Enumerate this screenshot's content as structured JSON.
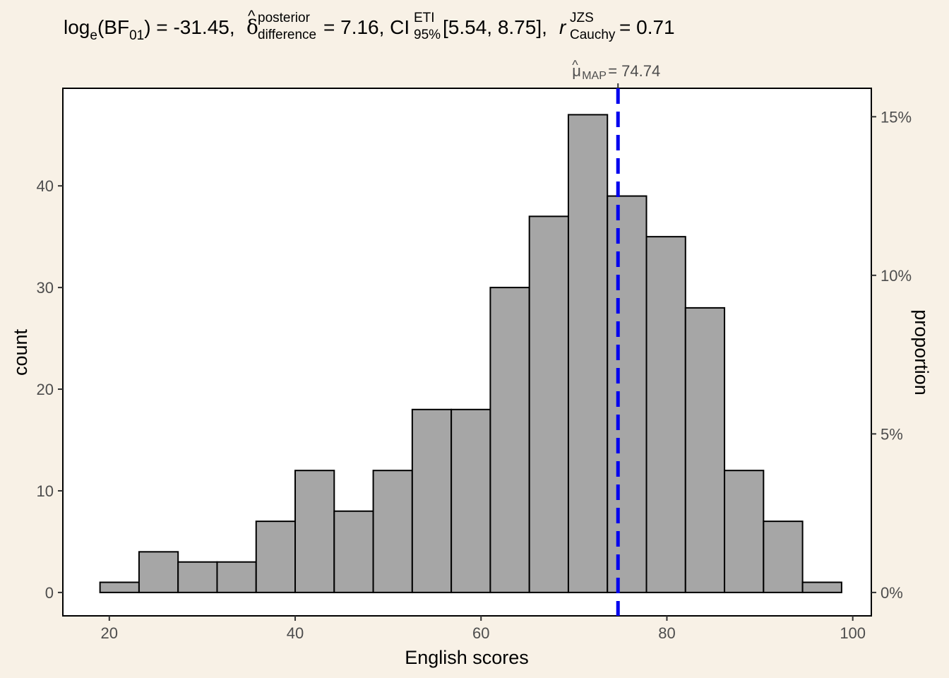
{
  "chart_data": {
    "type": "bar",
    "subtitle": {
      "log_prefix": "log",
      "log_sub": "e",
      "bf_open": "(BF",
      "bf_sub": "01",
      "bf_close": ")",
      "bf_eq": " = -31.45, ",
      "delta_symbol": "δ",
      "delta_hat": "^",
      "delta_sup": "posterior",
      "delta_sub": "difference",
      "delta_eq": " = 7.16, CI",
      "ci_sup": "ETI",
      "ci_sub": "95%",
      "ci_range": " [5.54, 8.75], ",
      "r_symbol": "r",
      "r_sup": "JZS",
      "r_sub": "Cauchy",
      "r_eq": " = 0.71"
    },
    "xlabel": "English scores",
    "ylabel": "count",
    "y2label": "proportion",
    "xlim": [
      15,
      102
    ],
    "ylim": [
      -2.3,
      49.6
    ],
    "x_ticks": [
      20,
      40,
      60,
      80,
      100
    ],
    "y_ticks": [
      0,
      10,
      20,
      30,
      40
    ],
    "y2_ticks": [
      {
        "count": 0,
        "label": "0%"
      },
      {
        "count": 15.6,
        "label": "5%"
      },
      {
        "count": 31.2,
        "label": "10%"
      },
      {
        "count": 46.8,
        "label": "15%"
      }
    ],
    "bins": [
      {
        "x0": 19.0,
        "x1": 23.2,
        "count": 1
      },
      {
        "x0": 23.2,
        "x1": 27.4,
        "count": 4
      },
      {
        "x0": 27.4,
        "x1": 31.6,
        "count": 3
      },
      {
        "x0": 31.6,
        "x1": 35.8,
        "count": 3
      },
      {
        "x0": 35.8,
        "x1": 40.0,
        "count": 7
      },
      {
        "x0": 40.0,
        "x1": 44.2,
        "count": 12
      },
      {
        "x0": 44.2,
        "x1": 48.4,
        "count": 8
      },
      {
        "x0": 48.4,
        "x1": 52.6,
        "count": 12
      },
      {
        "x0": 52.6,
        "x1": 56.8,
        "count": 18
      },
      {
        "x0": 56.8,
        "x1": 61.0,
        "count": 18
      },
      {
        "x0": 61.0,
        "x1": 65.2,
        "count": 30
      },
      {
        "x0": 65.2,
        "x1": 69.4,
        "count": 37
      },
      {
        "x0": 69.4,
        "x1": 73.6,
        "count": 47
      },
      {
        "x0": 73.6,
        "x1": 77.8,
        "count": 39
      },
      {
        "x0": 77.8,
        "x1": 82.0,
        "count": 35
      },
      {
        "x0": 82.0,
        "x1": 86.2,
        "count": 28
      },
      {
        "x0": 86.2,
        "x1": 90.4,
        "count": 12
      },
      {
        "x0": 90.4,
        "x1": 94.6,
        "count": 7
      },
      {
        "x0": 94.6,
        "x1": 98.8,
        "count": 1
      }
    ],
    "map_line": {
      "value": 74.74,
      "symbol": "μ",
      "hat": "^",
      "sub": "MAP",
      "eq": " = 74.74"
    },
    "colors": {
      "background": "#f8f1e6",
      "panel": "#ffffff",
      "bar_fill": "#a6a6a6",
      "bar_stroke": "#000000",
      "map_line": "#0000ee"
    },
    "grid": false,
    "legend": "none"
  }
}
